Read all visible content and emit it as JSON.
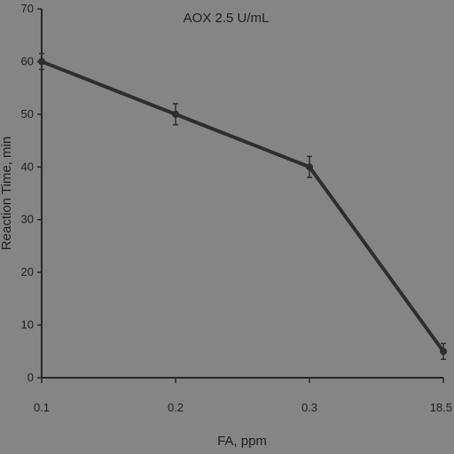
{
  "chart_data": {
    "type": "line",
    "title": "AOX 2.5 U/mL",
    "xlabel": "FA, ppm",
    "ylabel": "Reaction Time, min",
    "x_tick_labels": [
      "0.1",
      "0.2",
      "0.3",
      "18.5"
    ],
    "y_tick_labels": [
      "0",
      "10",
      "20",
      "30",
      "40",
      "50",
      "60",
      "70"
    ],
    "ylim": [
      0,
      70
    ],
    "grid": false,
    "series": [
      {
        "x": [
          "0.1",
          "0.2",
          "0.3",
          "18.5"
        ],
        "values": [
          60,
          50,
          40,
          5
        ],
        "error": [
          1.5,
          2,
          2,
          1.5
        ]
      }
    ]
  },
  "colors": {
    "background": "#858585",
    "line": "#2e2e2e",
    "axis": "#262626",
    "text": "#1e1e1e"
  }
}
